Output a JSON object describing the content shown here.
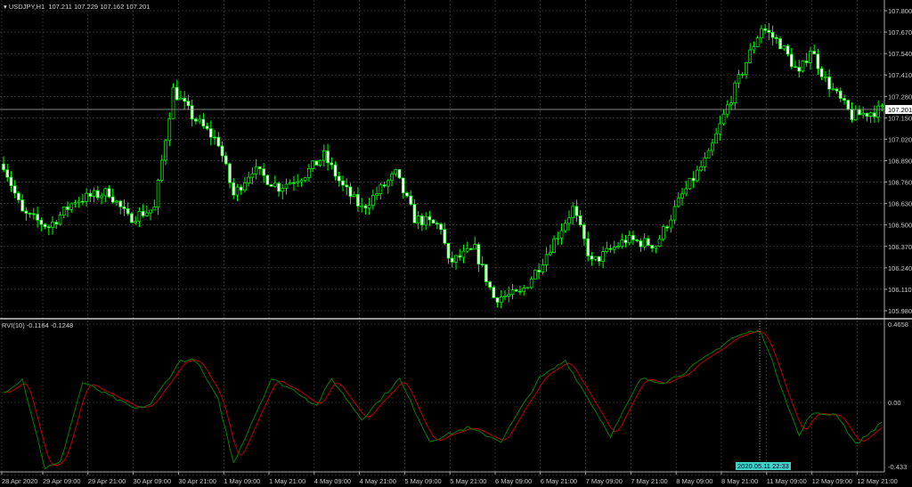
{
  "header": {
    "symbol": "USDJPY,H1",
    "ohlc": "107.211 107.229 107.162 107.201"
  },
  "indicator": {
    "label": "RVI(10) -0.1164 -0.1248"
  },
  "crosshair_time": "2020.05.11 22:33",
  "colors": {
    "background": "#000000",
    "grid": "#4a4a4a",
    "bull_outline": "#00ff00",
    "bear_body": "#ffffff",
    "rvi_line": "#008000",
    "signal_line": "#c00000",
    "crosshair_label": "#3fd1c4"
  },
  "chart_data": [
    {
      "type": "candlestick",
      "title": "USDJPY,H1",
      "timeframe": "H1",
      "price_ticks": [
        "107.800",
        "107.670",
        "107.540",
        "107.410",
        "107.280",
        "107.150",
        "107.020",
        "106.890",
        "106.760",
        "106.630",
        "106.500",
        "106.370",
        "106.240",
        "106.110",
        "105.980"
      ],
      "ylim": [
        105.95,
        107.82
      ],
      "current_price": "107.201",
      "grid": true,
      "close_waypoints": [
        [
          0,
          106.87
        ],
        [
          5,
          106.57
        ],
        [
          12,
          106.49
        ],
        [
          19,
          106.65
        ],
        [
          28,
          106.7
        ],
        [
          33,
          106.54
        ],
        [
          40,
          106.6
        ],
        [
          45,
          107.32
        ],
        [
          50,
          107.16
        ],
        [
          57,
          107.0
        ],
        [
          61,
          106.68
        ],
        [
          66,
          106.84
        ],
        [
          73,
          106.73
        ],
        [
          80,
          106.81
        ],
        [
          85,
          106.92
        ],
        [
          90,
          106.73
        ],
        [
          95,
          106.6
        ],
        [
          104,
          106.81
        ],
        [
          109,
          106.54
        ],
        [
          116,
          106.49
        ],
        [
          118,
          106.27
        ],
        [
          125,
          106.35
        ],
        [
          130,
          106.06
        ],
        [
          137,
          106.08
        ],
        [
          142,
          106.25
        ],
        [
          151,
          106.6
        ],
        [
          156,
          106.27
        ],
        [
          165,
          106.41
        ],
        [
          173,
          106.38
        ],
        [
          180,
          106.68
        ],
        [
          187,
          106.92
        ],
        [
          192,
          107.22
        ],
        [
          197,
          107.49
        ],
        [
          201,
          107.7
        ],
        [
          206,
          107.6
        ],
        [
          211,
          107.41
        ],
        [
          214,
          107.57
        ],
        [
          218,
          107.38
        ],
        [
          225,
          107.16
        ],
        [
          233,
          107.2
        ]
      ]
    },
    {
      "type": "line",
      "title": "RVI(10)",
      "y_ticks": [
        "0.4658",
        "0.00",
        "-0.433"
      ],
      "ylim": [
        -0.433,
        0.4658
      ],
      "series": [
        {
          "name": "RVI",
          "waypoints": [
            [
              0,
              0.06
            ],
            [
              5,
              0.14
            ],
            [
              11,
              -0.39
            ],
            [
              15,
              -0.36
            ],
            [
              21,
              0.12
            ],
            [
              28,
              0.04
            ],
            [
              35,
              -0.04
            ],
            [
              39,
              -0.01
            ],
            [
              47,
              0.25
            ],
            [
              51,
              0.25
            ],
            [
              57,
              0.01
            ],
            [
              61,
              -0.36
            ],
            [
              71,
              0.14
            ],
            [
              78,
              0.06
            ],
            [
              83,
              -0.02
            ],
            [
              87,
              0.14
            ],
            [
              95,
              -0.1
            ],
            [
              105,
              0.14
            ],
            [
              113,
              -0.23
            ],
            [
              123,
              -0.15
            ],
            [
              132,
              -0.23
            ],
            [
              142,
              0.14
            ],
            [
              149,
              0.25
            ],
            [
              161,
              -0.2
            ],
            [
              169,
              0.14
            ],
            [
              175,
              0.12
            ],
            [
              180,
              0.17
            ],
            [
              187,
              0.28
            ],
            [
              193,
              0.38
            ],
            [
              198,
              0.42
            ],
            [
              201,
              0.42
            ],
            [
              211,
              -0.2
            ],
            [
              214,
              -0.07
            ],
            [
              221,
              -0.07
            ],
            [
              226,
              -0.25
            ],
            [
              233,
              -0.12
            ]
          ]
        },
        {
          "name": "Signal"
        }
      ]
    }
  ],
  "time_labels": [
    "28 Apr 2020",
    "29 Apr 09:00",
    "29 Apr 21:00",
    "30 Apr 09:00",
    "30 Apr 21:00",
    "1 May 09:00",
    "1 May 21:00",
    "4 May 09:00",
    "4 May 21:00",
    "5 May 09:00",
    "5 May 21:00",
    "6 May 09:00",
    "6 May 21:00",
    "7 May 09:00",
    "7 May 21:00",
    "8 May 09:00",
    "8 May 21:00",
    "11 May 09:00",
    "12 May 09:00",
    "12 May 21:00"
  ]
}
